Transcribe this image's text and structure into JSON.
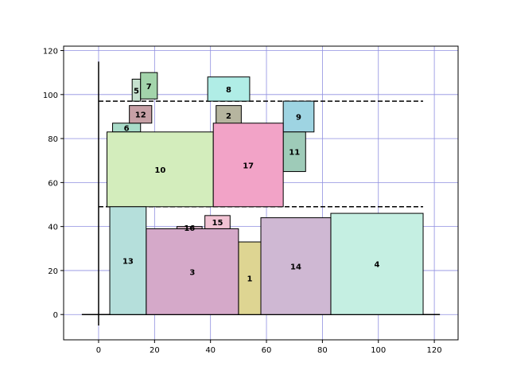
{
  "chart_data": {
    "type": "rectangle-packing",
    "title": "",
    "xlabel": "",
    "ylabel": "",
    "xlim": [
      -12.5,
      128.5
    ],
    "ylim": [
      -11.5,
      122
    ],
    "x_ticks": [
      0,
      20,
      40,
      60,
      80,
      100,
      120
    ],
    "y_ticks": [
      0,
      20,
      40,
      60,
      80,
      100,
      120
    ],
    "grid": true,
    "grid_color": "#8f8fe0",
    "axis_lines": {
      "horizontal": {
        "x0": -6,
        "x1": 122,
        "y": 0
      },
      "vertical": {
        "x": 0,
        "y0": -5,
        "y1": 115
      }
    },
    "dashed_lines": [
      {
        "x0": 0,
        "x1": 116,
        "y": 97
      },
      {
        "x0": 0,
        "x1": 116,
        "y": 49
      }
    ],
    "rectangles": [
      {
        "label": "1",
        "x": 50,
        "y": 0,
        "w": 8,
        "h": 33,
        "color": "#ded592"
      },
      {
        "label": "2",
        "x": 42,
        "y": 86,
        "w": 9,
        "h": 9,
        "color": "#b6b59f"
      },
      {
        "label": "3",
        "x": 17,
        "y": 0,
        "w": 33,
        "h": 39,
        "color": "#d5a9c9"
      },
      {
        "label": "4",
        "x": 83,
        "y": 0,
        "w": 33,
        "h": 46,
        "color": "#c5efe2"
      },
      {
        "label": "5",
        "x": 12,
        "y": 97,
        "w": 3,
        "h": 10,
        "color": "#c6e2cf"
      },
      {
        "label": "6",
        "x": 5,
        "y": 83,
        "w": 10,
        "h": 4,
        "color": "#a8dcc9"
      },
      {
        "label": "7",
        "x": 15,
        "y": 98,
        "w": 6,
        "h": 12,
        "color": "#a3d4ab"
      },
      {
        "label": "8",
        "x": 39,
        "y": 97,
        "w": 15,
        "h": 11,
        "color": "#b0ede6"
      },
      {
        "label": "9",
        "x": 66,
        "y": 83,
        "w": 11,
        "h": 14,
        "color": "#9ed4e2"
      },
      {
        "label": "10",
        "x": 3,
        "y": 49,
        "w": 38,
        "h": 34,
        "color": "#d3edbc"
      },
      {
        "label": "11",
        "x": 66,
        "y": 65,
        "w": 8,
        "h": 18,
        "color": "#9ecbb8"
      },
      {
        "label": "12",
        "x": 11,
        "y": 87,
        "w": 8,
        "h": 8,
        "color": "#c7a0a6"
      },
      {
        "label": "13",
        "x": 4,
        "y": 0,
        "w": 13,
        "h": 49,
        "color": "#b5dfdb"
      },
      {
        "label": "14",
        "x": 58,
        "y": 0,
        "w": 25,
        "h": 44,
        "color": "#cfb8d3"
      },
      {
        "label": "15",
        "x": 38,
        "y": 39,
        "w": 9,
        "h": 6,
        "color": "#f1c2d3"
      },
      {
        "label": "16",
        "x": 28,
        "y": 39,
        "w": 9,
        "h": 1,
        "color": "#e3bccf"
      },
      {
        "label": "17",
        "x": 41,
        "y": 49,
        "w": 25,
        "h": 38,
        "color": "#f2a3c7"
      }
    ]
  }
}
